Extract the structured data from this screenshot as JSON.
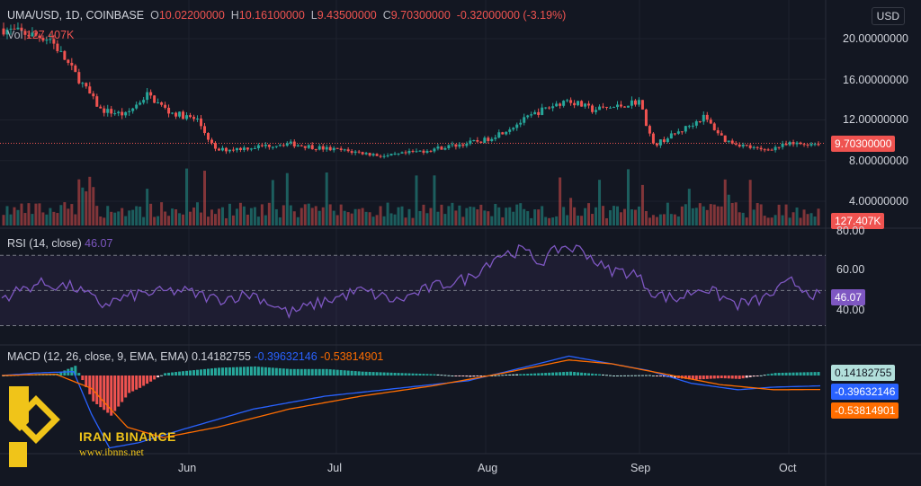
{
  "header": {
    "symbol": "UMA/USD, 1D, COINBASE",
    "open_label": "O",
    "open": "10.02200000",
    "high_label": "H",
    "high": "10.16100000",
    "low_label": "L",
    "low": "9.43500000",
    "close_label": "C",
    "close": "9.70300000",
    "change": "-0.32000000 (-3.19%)",
    "vol_label": "Vol",
    "vol": "127.407K",
    "currency": "USD"
  },
  "price_axis": [
    "20.00000000",
    "16.00000000",
    "12.00000000",
    "8.00000000",
    "4.00000000"
  ],
  "price_tag": "9.70300000",
  "volume_tag": "127.407K",
  "rsi": {
    "title": "RSI (14, close)",
    "value": "46.07",
    "axis": [
      "80.00",
      "60.00",
      "40.00"
    ]
  },
  "macd": {
    "title": "MACD (12, 26, close, 9, EMA, EMA)",
    "hist": "0.14182755",
    "macd": "-0.39632146",
    "signal": "-0.53814901"
  },
  "time_axis": [
    "Jun",
    "Jul",
    "Aug",
    "Sep",
    "Oct"
  ],
  "watermark": {
    "name": "IRAN BINANCE",
    "url": "www.ibnns.net"
  },
  "colors": {
    "up": "#26a69a",
    "down": "#ef5350",
    "bg": "#131722",
    "rsi": "#7e57c2",
    "macd": "#2962ff",
    "signal": "#ff6d00"
  },
  "chart_data": {
    "type": "candlestick",
    "price_ylim": [
      0,
      22
    ],
    "close_path": [
      [
        0,
        21
      ],
      [
        14,
        20
      ],
      [
        22,
        16
      ],
      [
        28,
        13
      ],
      [
        35,
        12.5
      ],
      [
        41,
        14.5
      ],
      [
        47,
        12.8
      ],
      [
        55,
        12
      ],
      [
        60,
        9.0
      ],
      [
        70,
        9.3
      ],
      [
        80,
        9.7
      ],
      [
        90,
        9.2
      ],
      [
        100,
        8.8
      ],
      [
        108,
        8.4
      ],
      [
        115,
        8.8
      ],
      [
        125,
        9.4
      ],
      [
        135,
        10.0
      ],
      [
        142,
        11.2
      ],
      [
        150,
        12.8
      ],
      [
        158,
        14.0
      ],
      [
        165,
        13.0
      ],
      [
        172,
        13.3
      ],
      [
        178,
        13.9
      ],
      [
        182,
        9.5
      ],
      [
        190,
        11.0
      ],
      [
        196,
        12.3
      ],
      [
        202,
        10.0
      ],
      [
        212,
        9.0
      ],
      [
        220,
        9.6
      ],
      [
        228,
        9.7
      ]
    ],
    "rsi_ylim": [
      20,
      85
    ],
    "rsi_path": [
      [
        0,
        46
      ],
      [
        10,
        54
      ],
      [
        20,
        52
      ],
      [
        28,
        42
      ],
      [
        38,
        48
      ],
      [
        50,
        50
      ],
      [
        60,
        45
      ],
      [
        70,
        48
      ],
      [
        80,
        37
      ],
      [
        90,
        44
      ],
      [
        100,
        50
      ],
      [
        110,
        44
      ],
      [
        120,
        52
      ],
      [
        130,
        57
      ],
      [
        138,
        70
      ],
      [
        145,
        73
      ],
      [
        150,
        66
      ],
      [
        156,
        75
      ],
      [
        162,
        73
      ],
      [
        168,
        62
      ],
      [
        176,
        60
      ],
      [
        182,
        48
      ],
      [
        188,
        45
      ],
      [
        195,
        52
      ],
      [
        205,
        42
      ],
      [
        212,
        45
      ],
      [
        220,
        55
      ],
      [
        228,
        46
      ]
    ],
    "macd_ylim": [
      -3.0,
      1.0
    ],
    "macd_path": [
      [
        0,
        0
      ],
      [
        10,
        0.1
      ],
      [
        20,
        0.15
      ],
      [
        25,
        -1.5
      ],
      [
        30,
        -2.8
      ],
      [
        38,
        -2.6
      ],
      [
        50,
        -2.1
      ],
      [
        70,
        -1.3
      ],
      [
        90,
        -0.8
      ],
      [
        110,
        -0.5
      ],
      [
        130,
        -0.2
      ],
      [
        145,
        0.3
      ],
      [
        158,
        0.75
      ],
      [
        168,
        0.5
      ],
      [
        180,
        0.2
      ],
      [
        192,
        -0.3
      ],
      [
        205,
        -0.55
      ],
      [
        215,
        -0.45
      ],
      [
        228,
        -0.4
      ]
    ],
    "signal_path": [
      [
        0,
        0
      ],
      [
        15,
        0.05
      ],
      [
        25,
        -0.5
      ],
      [
        35,
        -2.0
      ],
      [
        45,
        -2.4
      ],
      [
        60,
        -2.0
      ],
      [
        80,
        -1.3
      ],
      [
        100,
        -0.8
      ],
      [
        120,
        -0.4
      ],
      [
        140,
        0.1
      ],
      [
        158,
        0.6
      ],
      [
        170,
        0.45
      ],
      [
        185,
        0.05
      ],
      [
        200,
        -0.35
      ],
      [
        215,
        -0.55
      ],
      [
        228,
        -0.54
      ]
    ],
    "x_labels": [
      "Jun",
      "Jul",
      "Aug",
      "Sep",
      "Oct"
    ]
  }
}
